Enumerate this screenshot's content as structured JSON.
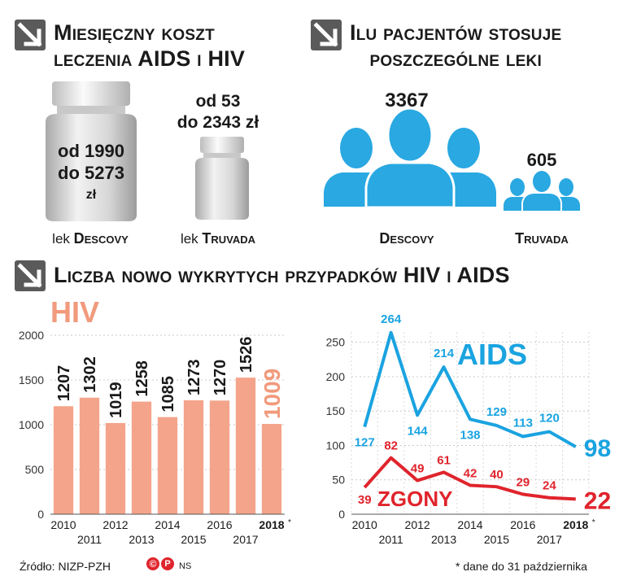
{
  "cost": {
    "title_line1": "Miesięczny koszt",
    "title_line2": "leczenia AIDS i HIV",
    "descovy": {
      "line1": "od 1990",
      "line2": "do 5273",
      "line3": "zł",
      "label_pre": "lek",
      "label_name": "Descovy"
    },
    "truvada": {
      "line1": "od 53",
      "line2": "do 2343 zł",
      "label_pre": "lek",
      "label_name": "Truvada"
    }
  },
  "patients": {
    "title_line1": "Ilu pacjentów stosuje",
    "title_line2": "poszczególne leki",
    "descovy": {
      "value": "3367",
      "label": "Descovy"
    },
    "truvada": {
      "value": "605",
      "label": "Truvada"
    }
  },
  "cases_title": "Liczba nowo wykrytych przypadków HIV i AIDS",
  "colors": {
    "hiv_bar": "#f4a48a",
    "hiv_label": "#f19a7c",
    "aids": "#1aa3e0",
    "deaths": "#e0242c",
    "arrow": "#5a5a5a",
    "people": "#29a8e2"
  },
  "chart_data": [
    {
      "type": "bar",
      "series_label": "HIV",
      "categories": [
        "2010",
        "2011",
        "2012",
        "2013",
        "2014",
        "2015",
        "2016",
        "2017",
        "2018"
      ],
      "category_marks": [
        "",
        "",
        "",
        "",
        "",
        "",
        "",
        "",
        "*"
      ],
      "values": [
        1207,
        1302,
        1019,
        1258,
        1085,
        1273,
        1270,
        1526,
        1009
      ],
      "value_labels": [
        "1207",
        "1302",
        "1019",
        "1258",
        "1085",
        "1273",
        "1270",
        "1526",
        "1009"
      ],
      "yticks": [
        "0",
        "500",
        "1000",
        "1500",
        "2000"
      ],
      "ylim": [
        0,
        2000
      ],
      "grid": true
    },
    {
      "type": "line",
      "categories": [
        "2010",
        "2011",
        "2012",
        "2013",
        "2014",
        "2015",
        "2016",
        "2017",
        "2018"
      ],
      "category_marks": [
        "",
        "",
        "",
        "",
        "",
        "",
        "",
        "",
        "*"
      ],
      "series": [
        {
          "name": "AIDS",
          "values": [
            127,
            264,
            144,
            214,
            138,
            129,
            113,
            120,
            98
          ],
          "value_labels": [
            "127",
            "264",
            "144",
            "214",
            "138",
            "129",
            "113",
            "120",
            "98"
          ]
        },
        {
          "name": "ZGONY",
          "values": [
            39,
            82,
            49,
            61,
            42,
            40,
            29,
            24,
            22
          ],
          "value_labels": [
            "39",
            "82",
            "49",
            "61",
            "42",
            "40",
            "29",
            "24",
            "22"
          ]
        }
      ],
      "yticks": [
        "0",
        "50",
        "100",
        "150",
        "200",
        "250"
      ],
      "ylim": [
        0,
        265
      ],
      "grid": true
    }
  ],
  "footer": {
    "source": "Źródło: NIZP-PZH",
    "copyright": "©",
    "p_mark": "P",
    "initials": "NS",
    "note": "* dane do 31 października"
  }
}
